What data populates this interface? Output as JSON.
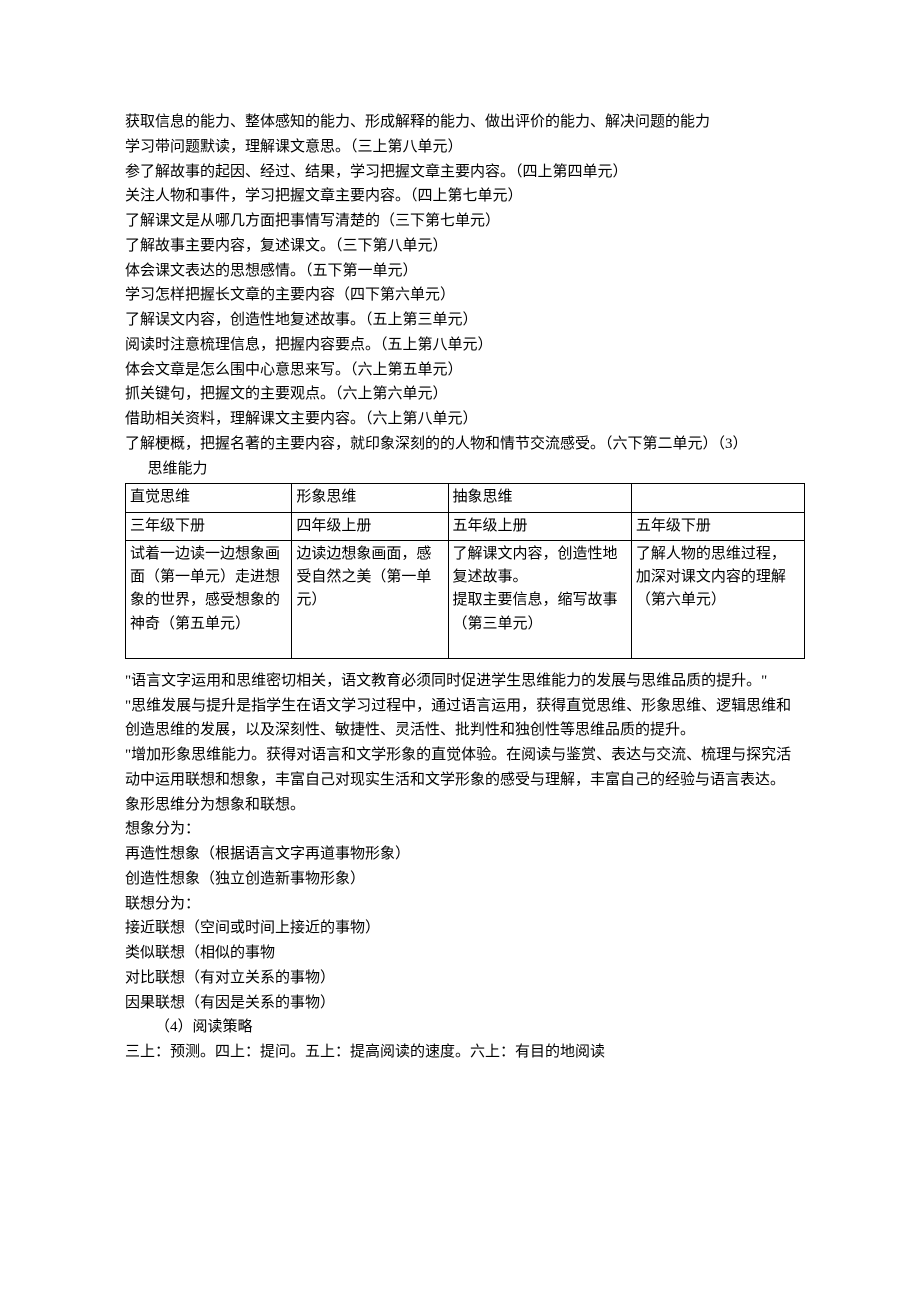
{
  "lines_top": [
    "获取信息的能力、整体感知的能力、形成解释的能力、做出评价的能力、解决问题的能力",
    "学习带问题默读，理解课文意思。（三上第八单元）",
    "参了解故事的起因、经过、结果，学习把握文章主要内容。（四上第四单元）",
    "关注人物和事件，学习把握文章主要内容。（四上第七单元）",
    "了解课文是从哪几方面把事情写清楚的（三下第七单元）",
    "了解故事主要内容，复述课文。（三下第八单元）",
    "体会课文表达的思想感情。（五下第一单元）",
    "学习怎样把握长文章的主要内容（四下第六单元）",
    "了解误文内容，创造性地复述故事。（五上第三单元）",
    "阅读时注意梳理信息，把握内容要点。（五上第八单元）",
    "体会文章是怎么围中心意思来写。（六上第五单元）",
    "抓关键句，把握文的主要观点。（六上第六单元）",
    "借助相关资料，理解课文主要内容。（六上第八单元）",
    "了解梗概，把握名著的主要内容，就印象深刻的的人物和情节交流感受。（六下第二单元）（3）"
  ],
  "heading_indent": "思维能力",
  "table": {
    "column_widths_pct": [
      24.5,
      23,
      27,
      25.5
    ],
    "border_color": "#000000",
    "font_size_pt": 11,
    "rows": [
      [
        "直觉思维",
        "形象思维",
        "抽象思维",
        ""
      ],
      [
        "三年级下册",
        "四年级上册",
        "五年级上册",
        "五年级下册"
      ],
      [
        "试着一边读一边想象画面（第一单元）走进想象的世界，感受想象的神奇（第五单元）",
        "边读边想象画面，感受自然之美（第一单元）",
        "了解课文内容，创造性地复述故事。\n提取主要信息，缩写故事（第三单元）",
        "了解人物的思维过程，加深对课文内容的理解（第六单元）"
      ]
    ]
  },
  "lines_bottom": [
    "",
    "\"语言文字运用和思维密切相关，语文教育必须同时促进学生思维能力的发展与思维品质的提升。\"",
    "\"思维发展与提升是指学生在语文学习过程中，通过语言运用，获得直觉思维、形象思维、逻辑思维和创造思维的发展，以及深刻性、敏捷性、灵活性、批判性和独创性等思维品质的提升。",
    "\"增加形象思维能力。获得对语言和文学形象的直觉体验。在阅读与鉴赏、表达与交流、梳理与探究活动中运用联想和想象，丰富自己对现实生活和文学形象的感受与理解，丰富自己的经验与语言表达。",
    "象形思维分为想象和联想。",
    "想象分为：",
    "再造性想象（根据语言文字再道事物形象）",
    "创造性想象（独立创造新事物形象）",
    "联想分为：",
    "接近联想（空间或时间上接近的事物）",
    "类似联想（相似的事物",
    "对比联想（有对立关系的事物）",
    "因果联想（有因是关系的事物）"
  ],
  "heading_indent2": "（4）阅读策略",
  "last_line": "三上：预测。四上：提问。五上：提高阅读的速度。六上：有目的地阅读"
}
